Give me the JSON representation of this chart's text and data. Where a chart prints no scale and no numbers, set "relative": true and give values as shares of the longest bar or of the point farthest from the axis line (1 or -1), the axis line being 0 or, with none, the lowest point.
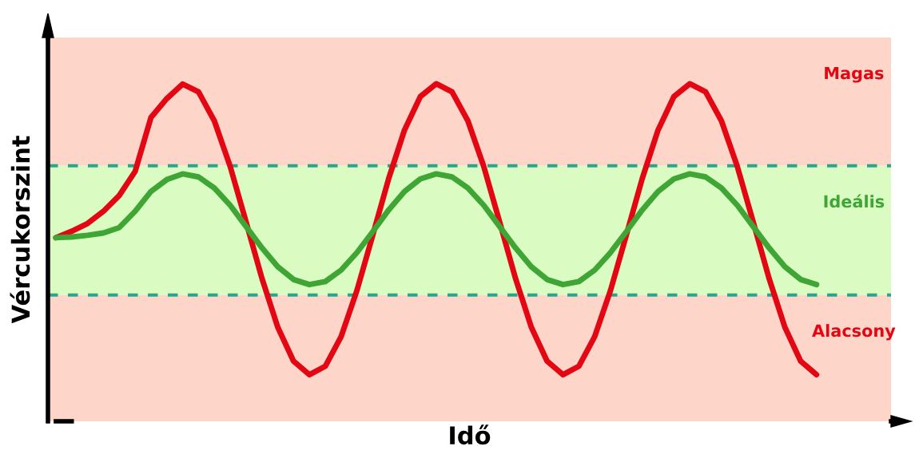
{
  "chart_data": {
    "type": "line",
    "relative": true,
    "xlabel": "Idő",
    "ylabel": "Vércukorszint",
    "categories": [
      null,
      null,
      null,
      null,
      null,
      null,
      null,
      null,
      null,
      null,
      null,
      null,
      null,
      null,
      null,
      null,
      null,
      null,
      null,
      null,
      null,
      null,
      null,
      null,
      null,
      null,
      null,
      null,
      null,
      null,
      null,
      null,
      null,
      null,
      null,
      null,
      null,
      null,
      null,
      null,
      null,
      null,
      null,
      null,
      null,
      null,
      null,
      null,
      null
    ],
    "series": [
      {
        "color": "#e30613",
        "values": [
          0.544,
          0.563,
          0.586,
          0.622,
          0.669,
          0.74,
          0.9,
          0.956,
          0.999,
          0.976,
          0.89,
          0.755,
          0.591,
          0.424,
          0.279,
          0.178,
          0.138,
          0.163,
          0.251,
          0.388,
          0.552,
          0.719,
          0.863,
          0.962,
          1.0,
          0.976,
          0.89,
          0.755,
          0.591,
          0.424,
          0.279,
          0.178,
          0.138,
          0.163,
          0.251,
          0.388,
          0.552,
          0.719,
          0.863,
          0.962,
          1.0,
          0.976,
          0.89,
          0.755,
          0.591,
          0.424,
          0.279,
          0.178,
          0.138
        ]
      },
      {
        "color": "#3fa535",
        "values": [
          0.544,
          0.546,
          0.551,
          0.558,
          0.574,
          0.622,
          0.681,
          0.716,
          0.733,
          0.724,
          0.691,
          0.64,
          0.577,
          0.514,
          0.458,
          0.42,
          0.405,
          0.414,
          0.448,
          0.5,
          0.562,
          0.626,
          0.681,
          0.718,
          0.733,
          0.724,
          0.691,
          0.64,
          0.577,
          0.514,
          0.458,
          0.42,
          0.405,
          0.414,
          0.448,
          0.5,
          0.562,
          0.626,
          0.681,
          0.718,
          0.733,
          0.724,
          0.691,
          0.64,
          0.577,
          0.514,
          0.458,
          0.42,
          0.405
        ]
      }
    ],
    "bands": [
      {
        "axis": "y",
        "from": 0.757,
        "to": 1.137,
        "label": "Magas",
        "color": "#fdd6c9"
      },
      {
        "axis": "y",
        "from": 0.374,
        "to": 0.757,
        "label": "Ideális",
        "color": "#dafbc2"
      },
      {
        "axis": "y",
        "from": 0.0,
        "to": 0.374,
        "label": "Alacsony",
        "color": "#fdd6c9"
      }
    ],
    "ref_lines": [
      {
        "axis": "y",
        "value": 0.757,
        "color": "#2aa58c",
        "line_style": "dashed"
      },
      {
        "axis": "y",
        "value": 0.374,
        "color": "#2aa58c",
        "line_style": "dashed"
      }
    ],
    "marker": "none",
    "line_style": "solid"
  }
}
